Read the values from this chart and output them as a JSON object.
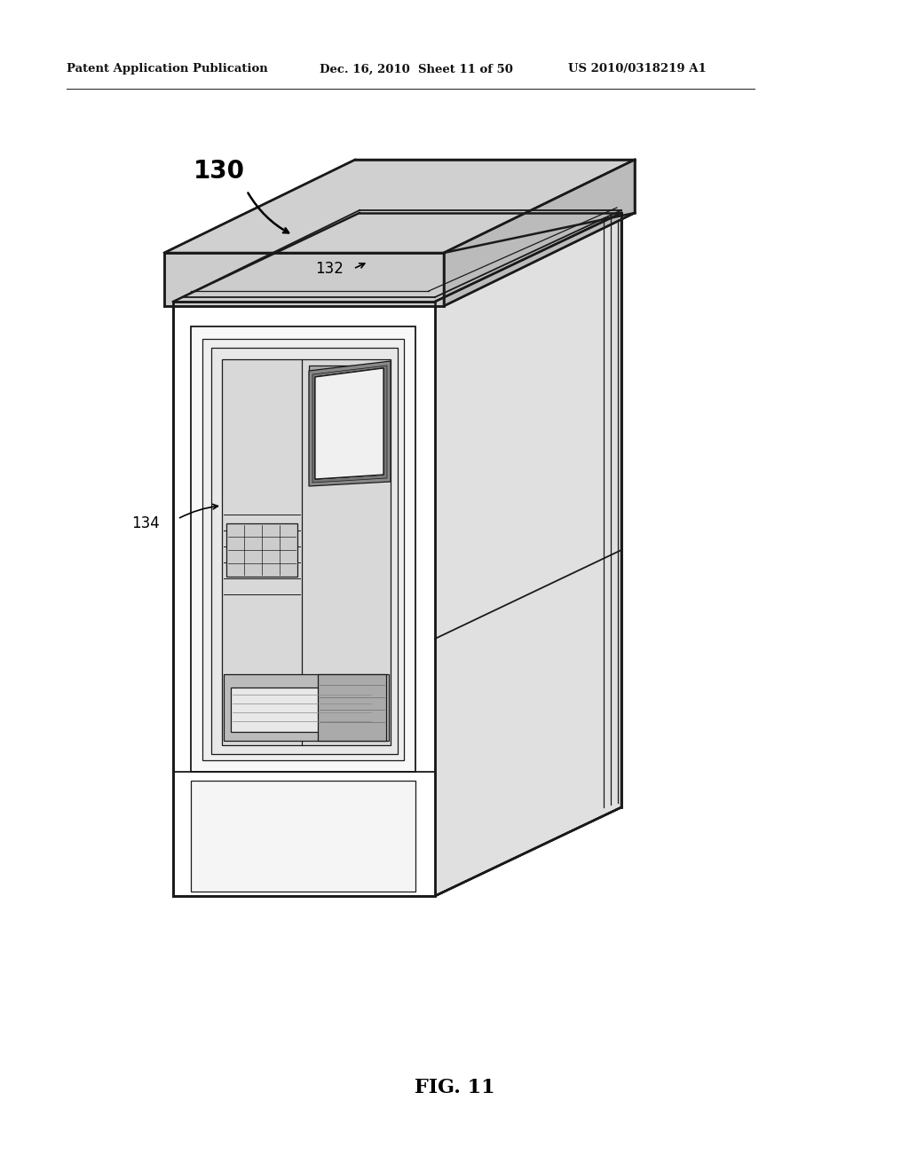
{
  "bg_color": "#ffffff",
  "header_left": "Patent Application Publication",
  "header_mid": "Dec. 16, 2010  Sheet 11 of 50",
  "header_right": "US 2010/0318219 A1",
  "fig_label": "FIG. 11",
  "label_130": "130",
  "label_132": "132",
  "label_134": "134",
  "line_color": "#1a1a1a",
  "fill_front": "#ffffff",
  "fill_side": "#e0e0e0",
  "fill_top": "#d0d0d0",
  "fill_inner_panel": "#f5f5f5",
  "fill_inner_recess": "#e8e8e8",
  "fill_screen": "#f0f0f0",
  "fill_dark": "#c8c8c8"
}
